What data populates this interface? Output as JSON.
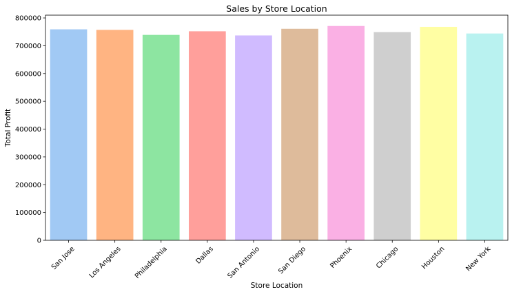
{
  "chart_data": {
    "type": "bar",
    "title": "Sales by Store Location",
    "xlabel": "Store Location",
    "ylabel": "Total Profit",
    "ylim": [
      0,
      810000
    ],
    "yticks": [
      0,
      100000,
      200000,
      300000,
      400000,
      500000,
      600000,
      700000,
      800000
    ],
    "grid": false,
    "legend": "none",
    "categories": [
      "San Jose",
      "Los Angeles",
      "Philadelphia",
      "Dallas",
      "San Antonio",
      "San Diego",
      "Phoenix",
      "Chicago",
      "Houston",
      "New York"
    ],
    "values": [
      759000,
      757000,
      739000,
      752000,
      737000,
      761000,
      771000,
      749000,
      768000,
      744000
    ],
    "colors": [
      "#a1c9f4",
      "#ffb482",
      "#8de5a1",
      "#ff9f9b",
      "#d0bbff",
      "#debb9b",
      "#fab0e4",
      "#cfcfcf",
      "#fffea3",
      "#b9f2f0"
    ]
  }
}
